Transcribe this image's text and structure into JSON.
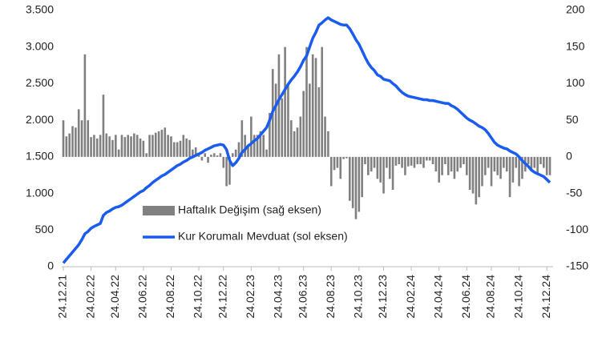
{
  "chart_data": {
    "type": "bar-line",
    "categories": [
      "24.12.21",
      null,
      null,
      null,
      null,
      null,
      null,
      null,
      null,
      "24.02.22",
      null,
      null,
      null,
      null,
      null,
      null,
      null,
      "24.04.22",
      null,
      null,
      null,
      null,
      null,
      null,
      null,
      null,
      "24.06.22",
      null,
      null,
      null,
      null,
      null,
      null,
      null,
      null,
      "24.08.22",
      null,
      null,
      null,
      null,
      null,
      null,
      null,
      null,
      "24.10.22",
      null,
      null,
      null,
      null,
      null,
      null,
      null,
      "24.12.22",
      null,
      null,
      null,
      null,
      null,
      null,
      null,
      null,
      "24.02.23",
      null,
      null,
      null,
      null,
      null,
      null,
      null,
      null,
      "24.04.23",
      null,
      null,
      null,
      null,
      null,
      null,
      null,
      "24.06.23",
      null,
      null,
      null,
      null,
      null,
      null,
      null,
      null,
      "24.08.23",
      null,
      null,
      null,
      null,
      null,
      null,
      null,
      null,
      "24.10.23",
      null,
      null,
      null,
      null,
      null,
      null,
      null,
      "24.12.23",
      null,
      null,
      null,
      null,
      null,
      null,
      null,
      null,
      "24.02.24",
      null,
      null,
      null,
      null,
      null,
      null,
      null,
      null,
      "24.04.24",
      null,
      null,
      null,
      null,
      null,
      null,
      null,
      null,
      "24.06.24",
      null,
      null,
      null,
      null,
      null,
      null,
      null,
      "24.08.24",
      null,
      null,
      null,
      null,
      null,
      null,
      null,
      null,
      "24.10.24",
      null,
      null,
      null,
      null,
      null,
      null,
      null,
      null,
      "24.12.24",
      null
    ],
    "series": [
      {
        "name": "Haftalık Değişim (sağ eksen)",
        "type": "bar",
        "axis": "y2",
        "color": "#808080",
        "values": [
          50,
          28,
          32,
          42,
          40,
          65,
          50,
          140,
          50,
          27,
          30,
          25,
          30,
          85,
          32,
          28,
          23,
          30,
          10,
          30,
          27,
          30,
          28,
          32,
          30,
          25,
          22,
          5,
          30,
          30,
          33,
          35,
          37,
          40,
          30,
          28,
          20,
          20,
          22,
          30,
          25,
          23,
          10,
          13,
          3,
          -5,
          5,
          -8,
          3,
          5,
          2,
          5,
          -15,
          -40,
          -38,
          5,
          10,
          20,
          50,
          30,
          15,
          55,
          30,
          30,
          35,
          30,
          10,
          60,
          120,
          100,
          140,
          80,
          150,
          100,
          50,
          35,
          40,
          55,
          90,
          150,
          100,
          140,
          135,
          95,
          150,
          55,
          35,
          -40,
          -18,
          -15,
          -30,
          -3,
          -2,
          -60,
          -70,
          -85,
          -75,
          -55,
          -10,
          -25,
          -20,
          -15,
          -30,
          -35,
          -50,
          -15,
          -30,
          -45,
          -12,
          -10,
          -15,
          -25,
          -13,
          -12,
          -15,
          -10,
          -10,
          -15,
          -5,
          -5,
          -10,
          -20,
          -35,
          -25,
          -10,
          -25,
          -20,
          -30,
          -20,
          -15,
          -10,
          -25,
          -45,
          -50,
          -65,
          -55,
          -40,
          -25,
          -15,
          -40,
          -20,
          -25,
          -30,
          -15,
          -20,
          -55,
          -35,
          -15,
          -40,
          -30,
          -20,
          -10,
          -20,
          -15,
          -25,
          -10,
          -15,
          -25,
          -25
        ]
      },
      {
        "name": "Kur Korumalı Mevduat (sol eksen)",
        "type": "line",
        "axis": "y",
        "color": "#1a5cf0",
        "values": [
          50,
          100,
          150,
          200,
          250,
          300,
          370,
          450,
          480,
          525,
          550,
          570,
          590,
          700,
          740,
          760,
          790,
          810,
          820,
          840,
          870,
          900,
          930,
          960,
          990,
          1020,
          1040,
          1080,
          1110,
          1150,
          1180,
          1210,
          1240,
          1260,
          1290,
          1320,
          1350,
          1380,
          1400,
          1430,
          1450,
          1480,
          1500,
          1520,
          1540,
          1560,
          1590,
          1610,
          1630,
          1650,
          1660,
          1670,
          1660,
          1600,
          1450,
          1380,
          1420,
          1480,
          1560,
          1600,
          1650,
          1680,
          1720,
          1750,
          1800,
          1850,
          1900,
          2000,
          2120,
          2200,
          2280,
          2350,
          2420,
          2490,
          2550,
          2600,
          2660,
          2730,
          2820,
          2880,
          3000,
          3120,
          3200,
          3300,
          3330,
          3370,
          3400,
          3370,
          3350,
          3330,
          3310,
          3300,
          3300,
          3250,
          3180,
          3100,
          3040,
          2950,
          2860,
          2780,
          2720,
          2680,
          2620,
          2600,
          2560,
          2550,
          2540,
          2500,
          2470,
          2420,
          2380,
          2350,
          2330,
          2320,
          2310,
          2300,
          2290,
          2280,
          2280,
          2270,
          2270,
          2260,
          2250,
          2240,
          2230,
          2230,
          2200,
          2180,
          2150,
          2110,
          2070,
          2030,
          2000,
          1980,
          1950,
          1920,
          1900,
          1870,
          1820,
          1760,
          1700,
          1660,
          1640,
          1620,
          1610,
          1580,
          1560,
          1540,
          1500,
          1450,
          1410,
          1370,
          1320,
          1290,
          1270,
          1250,
          1230,
          1190,
          1150
        ]
      }
    ],
    "ylim": [
      0,
      3500
    ],
    "yticks": [
      0,
      500,
      {
        "value": 1000,
        "label": "1.000"
      },
      {
        "value": 1500,
        "label": "1.500"
      },
      {
        "value": 2000,
        "label": "2.000"
      },
      {
        "value": 2500,
        "label": "2.500"
      },
      {
        "value": 3000,
        "label": "3.000"
      },
      {
        "value": 3500,
        "label": "3.500"
      }
    ],
    "y2lim": [
      -150,
      200
    ],
    "y2ticks": [
      -150,
      -100,
      -50,
      0,
      50,
      100,
      150,
      200
    ],
    "legend": "lower left"
  }
}
